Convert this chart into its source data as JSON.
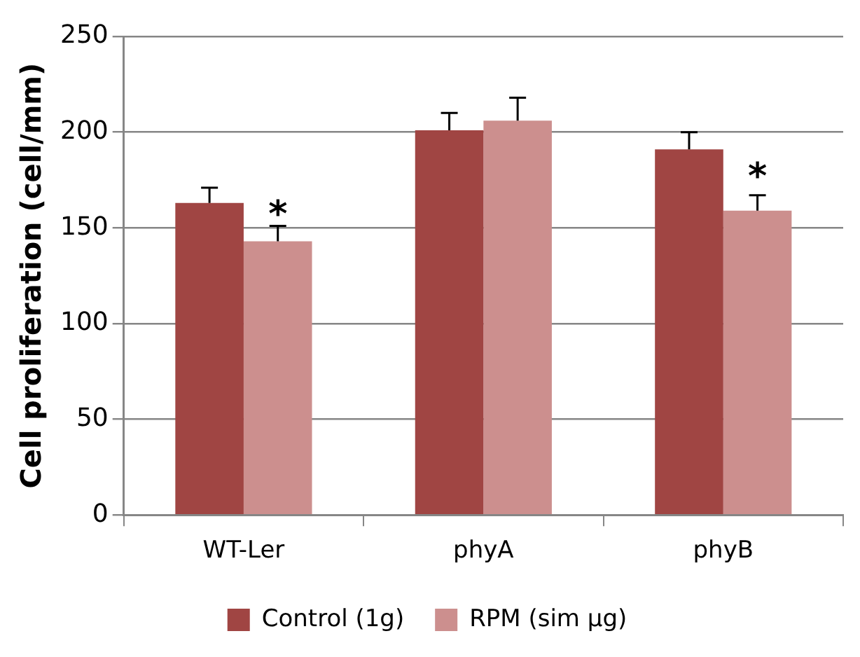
{
  "chart_data": {
    "type": "bar",
    "ylabel": "Cell proliferation (cell/mm)",
    "categories": [
      "WT-Ler",
      "phyA",
      "phyB"
    ],
    "series": [
      {
        "name": "Control (1g)",
        "color": "#a04543",
        "values": [
          163,
          201,
          191
        ],
        "errors": [
          [
            163,
            171
          ],
          [
            201,
            210
          ],
          [
            191,
            200
          ]
        ]
      },
      {
        "name": "RPM (sim μg)",
        "color": "#cc8f8e",
        "values": [
          143,
          206,
          159
        ],
        "errors": [
          [
            143,
            151
          ],
          [
            206,
            218
          ],
          [
            159,
            167
          ]
        ]
      }
    ],
    "ylim": [
      0,
      250
    ],
    "yticks": [
      0,
      50,
      100,
      150,
      200,
      250
    ],
    "grid": "y",
    "legend": "bottom",
    "annotations": [
      {
        "text": "*",
        "x": "WT-Ler",
        "y": 160
      },
      {
        "text": "*",
        "x": "phyB",
        "y": 180
      }
    ]
  }
}
